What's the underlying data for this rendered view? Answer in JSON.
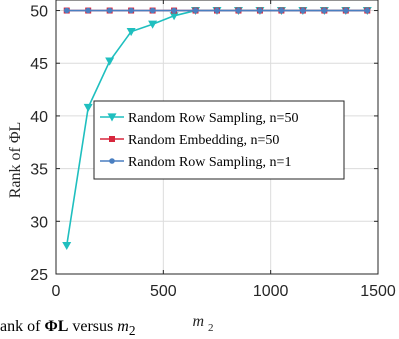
{
  "chart_data": {
    "type": "line",
    "xlabel": "m",
    "xlabel_sub": "2",
    "ylabel": "Rank of ΦL",
    "xlim": [
      0,
      1500
    ],
    "ylim": [
      25,
      51
    ],
    "xticks": [
      0,
      500,
      1000,
      1500
    ],
    "yticks": [
      25,
      30,
      35,
      40,
      45,
      50
    ],
    "grid": true,
    "legend_position": "center-right",
    "x": [
      50,
      150,
      250,
      350,
      450,
      550,
      650,
      750,
      850,
      950,
      1050,
      1150,
      1250,
      1350,
      1450
    ],
    "series": [
      {
        "name": "Random Row Sampling, n=50",
        "color": "#1fbfbf",
        "marker": "triangle-down",
        "values": [
          27.7,
          40.8,
          45.2,
          48.0,
          48.7,
          49.5,
          50,
          50,
          50,
          50,
          50,
          50,
          50,
          50,
          50
        ]
      },
      {
        "name": "Random Embedding, n=50",
        "color": "#d7263d",
        "marker": "square",
        "values": [
          50,
          50,
          50,
          50,
          50,
          50,
          50,
          50,
          50,
          50,
          50,
          50,
          50,
          50,
          50
        ]
      },
      {
        "name": "Random Row Sampling, n=1",
        "color": "#4a7fc1",
        "marker": "dot",
        "values": [
          50,
          50,
          50,
          50,
          50,
          50,
          50,
          50,
          50,
          50,
          50,
          50,
          50,
          50,
          50
        ]
      }
    ]
  },
  "caption": {
    "prefix": "ank of ",
    "bold": "ΦL",
    "suffix": " versus ",
    "var": "m",
    "sub": "2"
  }
}
